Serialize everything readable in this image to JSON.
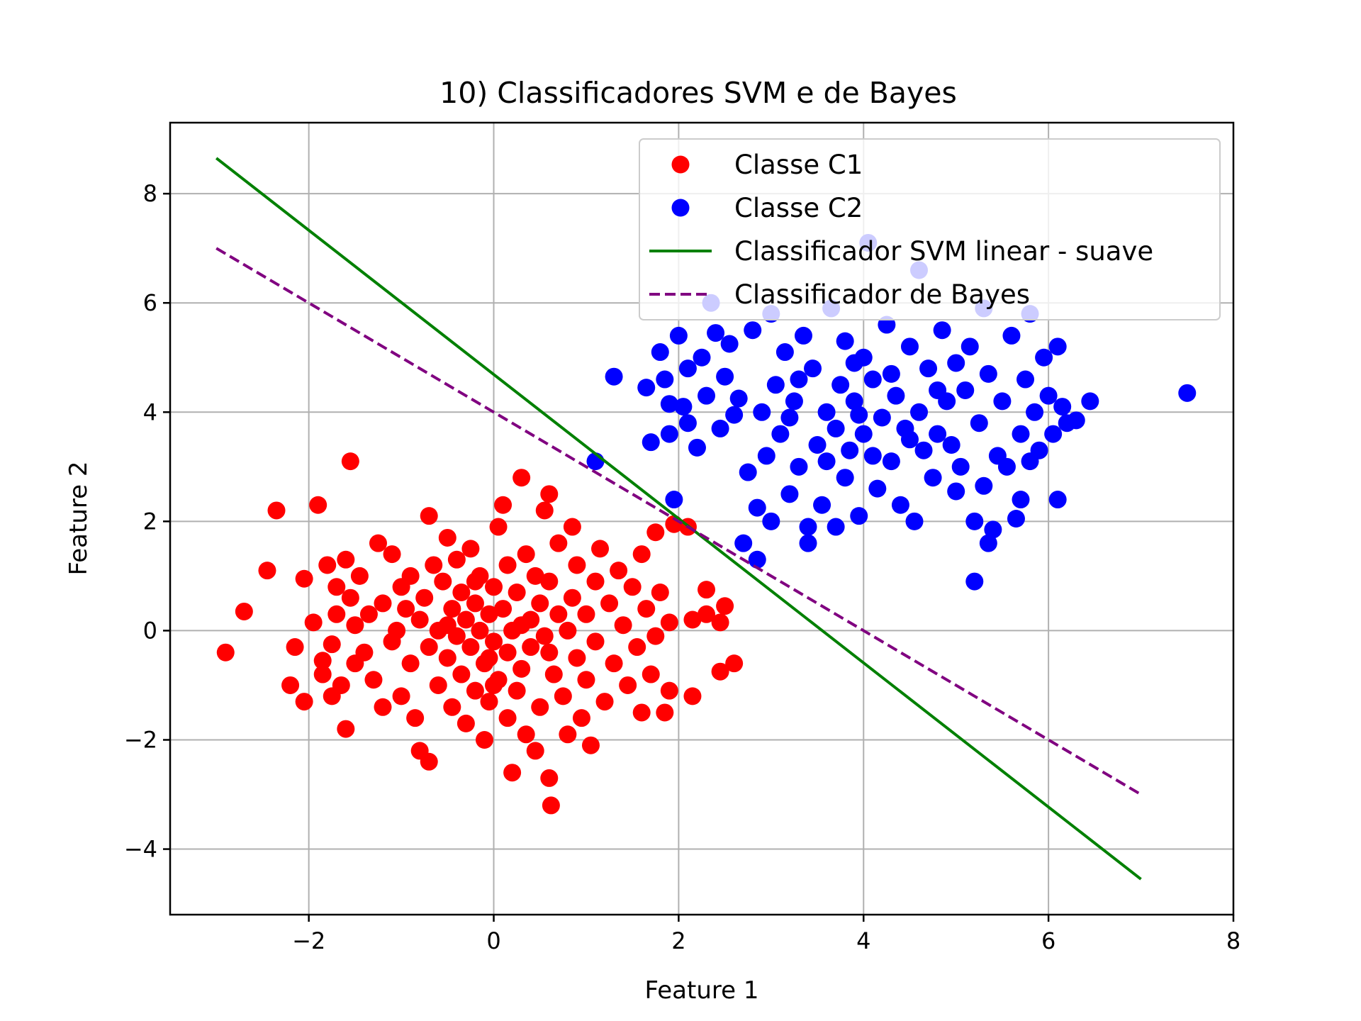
{
  "chart_data": {
    "type": "scatter",
    "title": "10) Classificadores SVM e de Bayes",
    "xlabel": "Feature 1",
    "ylabel": "Feature 2",
    "xlim": [
      -3.5,
      8
    ],
    "ylim": [
      -5.2,
      9.3
    ],
    "xticks": [
      -2,
      0,
      2,
      4,
      6,
      8
    ],
    "yticks": [
      -4,
      -2,
      0,
      2,
      4,
      6,
      8
    ],
    "xtick_labels": [
      "−2",
      "0",
      "2",
      "4",
      "6",
      "8"
    ],
    "ytick_labels": [
      "−4",
      "−2",
      "0",
      "2",
      "4",
      "6",
      "8"
    ],
    "grid": true,
    "legend_position": "top-right",
    "series": [
      {
        "name": "Classe C1",
        "kind": "scatter",
        "color": "#ff0000",
        "points": [
          [
            -2.9,
            -0.4
          ],
          [
            -2.7,
            0.35
          ],
          [
            -2.45,
            1.1
          ],
          [
            -2.35,
            2.2
          ],
          [
            -2.2,
            -1.0
          ],
          [
            -2.15,
            -0.3
          ],
          [
            -2.05,
            0.95
          ],
          [
            -2.05,
            -1.3
          ],
          [
            -1.95,
            0.15
          ],
          [
            -1.9,
            2.3
          ],
          [
            -1.85,
            -0.8
          ],
          [
            -1.85,
            -0.55
          ],
          [
            -1.8,
            1.2
          ],
          [
            -1.75,
            -0.25
          ],
          [
            -1.75,
            -1.2
          ],
          [
            -1.7,
            0.8
          ],
          [
            -1.7,
            0.3
          ],
          [
            -1.65,
            -1.0
          ],
          [
            -1.6,
            1.3
          ],
          [
            -1.6,
            -1.8
          ],
          [
            -1.55,
            3.1
          ],
          [
            -1.55,
            0.6
          ],
          [
            -1.5,
            0.1
          ],
          [
            -1.5,
            -0.6
          ],
          [
            -1.45,
            1.0
          ],
          [
            -1.4,
            -0.4
          ],
          [
            -1.35,
            0.3
          ],
          [
            -1.3,
            -0.9
          ],
          [
            -1.25,
            1.6
          ],
          [
            -1.2,
            0.5
          ],
          [
            -1.2,
            -1.4
          ],
          [
            -1.1,
            1.4
          ],
          [
            -1.1,
            -0.2
          ],
          [
            -1.05,
            0.0
          ],
          [
            -1.0,
            0.8
          ],
          [
            -1.0,
            -1.2
          ],
          [
            -0.95,
            0.4
          ],
          [
            -0.9,
            -0.6
          ],
          [
            -0.9,
            1.0
          ],
          [
            -0.85,
            -1.6
          ],
          [
            -0.8,
            0.2
          ],
          [
            -0.8,
            -2.2
          ],
          [
            -0.75,
            0.6
          ],
          [
            -0.7,
            2.1
          ],
          [
            -0.7,
            -0.3
          ],
          [
            -0.7,
            -2.4
          ],
          [
            -0.65,
            1.2
          ],
          [
            -0.6,
            -1.0
          ],
          [
            -0.6,
            0.0
          ],
          [
            -0.55,
            0.9
          ],
          [
            -0.5,
            -0.5
          ],
          [
            -0.5,
            1.7
          ],
          [
            -0.45,
            0.4
          ],
          [
            -0.45,
            -1.4
          ],
          [
            -0.4,
            1.3
          ],
          [
            -0.4,
            -0.1
          ],
          [
            -0.35,
            0.7
          ],
          [
            -0.35,
            -0.8
          ],
          [
            -0.3,
            -1.7
          ],
          [
            -0.3,
            0.2
          ],
          [
            -0.25,
            1.5
          ],
          [
            -0.25,
            -0.3
          ],
          [
            -0.2,
            0.5
          ],
          [
            -0.2,
            -1.1
          ],
          [
            -0.15,
            0.0
          ],
          [
            -0.15,
            1.0
          ],
          [
            -0.1,
            -0.6
          ],
          [
            -0.1,
            -2.0
          ],
          [
            -0.05,
            0.3
          ],
          [
            -0.05,
            -1.3
          ],
          [
            0.0,
            0.8
          ],
          [
            0.0,
            -0.2
          ],
          [
            0.05,
            1.9
          ],
          [
            0.05,
            -0.9
          ],
          [
            0.1,
            0.4
          ],
          [
            0.1,
            2.3
          ],
          [
            0.15,
            -0.4
          ],
          [
            0.15,
            1.2
          ],
          [
            0.2,
            -2.6
          ],
          [
            0.2,
            0.0
          ],
          [
            0.25,
            -1.1
          ],
          [
            0.25,
            0.7
          ],
          [
            0.3,
            2.8
          ],
          [
            0.3,
            -0.7
          ],
          [
            0.35,
            1.4
          ],
          [
            0.35,
            -1.9
          ],
          [
            0.4,
            0.2
          ],
          [
            0.4,
            -0.3
          ],
          [
            0.45,
            1.0
          ],
          [
            0.45,
            -2.2
          ],
          [
            0.5,
            0.5
          ],
          [
            0.5,
            -1.4
          ],
          [
            0.55,
            2.2
          ],
          [
            0.55,
            -0.1
          ],
          [
            0.6,
            2.5
          ],
          [
            0.6,
            -2.7
          ],
          [
            0.6,
            0.9
          ],
          [
            0.62,
            -3.2
          ],
          [
            0.65,
            -0.8
          ],
          [
            0.7,
            0.3
          ],
          [
            0.7,
            1.6
          ],
          [
            0.75,
            -1.2
          ],
          [
            0.8,
            0.0
          ],
          [
            0.8,
            -1.9
          ],
          [
            0.85,
            1.9
          ],
          [
            0.85,
            0.6
          ],
          [
            0.9,
            -0.5
          ],
          [
            0.9,
            1.2
          ],
          [
            0.95,
            -1.6
          ],
          [
            1.0,
            0.3
          ],
          [
            1.0,
            -0.9
          ],
          [
            1.05,
            -2.1
          ],
          [
            1.1,
            0.9
          ],
          [
            1.1,
            -0.2
          ],
          [
            1.15,
            1.5
          ],
          [
            1.2,
            -1.3
          ],
          [
            1.25,
            0.5
          ],
          [
            1.3,
            -0.6
          ],
          [
            1.35,
            1.1
          ],
          [
            1.4,
            0.1
          ],
          [
            1.45,
            -1.0
          ],
          [
            1.5,
            0.8
          ],
          [
            1.55,
            -0.3
          ],
          [
            1.6,
            1.4
          ],
          [
            1.6,
            -1.5
          ],
          [
            1.65,
            0.4
          ],
          [
            1.7,
            -0.8
          ],
          [
            1.75,
            1.8
          ],
          [
            1.75,
            -0.1
          ],
          [
            1.8,
            0.7
          ],
          [
            1.85,
            -1.5
          ],
          [
            1.9,
            0.15
          ],
          [
            1.95,
            1.95
          ],
          [
            1.9,
            -1.1
          ],
          [
            2.1,
            1.9
          ],
          [
            2.15,
            0.2
          ],
          [
            2.15,
            -1.2
          ],
          [
            2.3,
            0.3
          ],
          [
            2.3,
            0.75
          ],
          [
            2.45,
            0.15
          ],
          [
            2.45,
            -0.75
          ],
          [
            2.5,
            0.45
          ],
          [
            2.6,
            -0.6
          ],
          [
            -0.05,
            -0.5
          ],
          [
            0.0,
            -1.0
          ],
          [
            -0.2,
            0.9
          ],
          [
            0.3,
            0.1
          ],
          [
            0.6,
            -0.4
          ],
          [
            -0.5,
            0.1
          ],
          [
            0.15,
            -1.6
          ]
        ]
      },
      {
        "name": "Classe C2",
        "kind": "scatter",
        "color": "#0000ff",
        "points": [
          [
            1.1,
            3.1
          ],
          [
            1.3,
            4.65
          ],
          [
            1.65,
            4.45
          ],
          [
            1.7,
            3.45
          ],
          [
            1.8,
            5.1
          ],
          [
            1.85,
            4.6
          ],
          [
            1.9,
            3.6
          ],
          [
            1.9,
            4.15
          ],
          [
            1.95,
            2.4
          ],
          [
            2.0,
            5.4
          ],
          [
            2.05,
            4.1
          ],
          [
            2.1,
            4.8
          ],
          [
            2.1,
            3.8
          ],
          [
            2.2,
            3.35
          ],
          [
            2.25,
            5.0
          ],
          [
            2.3,
            4.3
          ],
          [
            2.35,
            6.0
          ],
          [
            2.4,
            5.45
          ],
          [
            2.45,
            3.7
          ],
          [
            2.5,
            4.65
          ],
          [
            2.55,
            5.25
          ],
          [
            2.6,
            3.95
          ],
          [
            2.65,
            4.25
          ],
          [
            2.7,
            1.6
          ],
          [
            2.75,
            2.9
          ],
          [
            2.8,
            5.5
          ],
          [
            2.85,
            2.25
          ],
          [
            2.85,
            1.3
          ],
          [
            2.9,
            4.0
          ],
          [
            2.95,
            3.2
          ],
          [
            3.0,
            5.8
          ],
          [
            3.0,
            2.0
          ],
          [
            3.05,
            4.5
          ],
          [
            3.1,
            3.6
          ],
          [
            3.15,
            5.1
          ],
          [
            3.2,
            2.5
          ],
          [
            3.25,
            4.2
          ],
          [
            3.3,
            3.0
          ],
          [
            3.35,
            5.4
          ],
          [
            3.4,
            1.6
          ],
          [
            3.4,
            1.9
          ],
          [
            3.45,
            4.8
          ],
          [
            3.5,
            3.4
          ],
          [
            3.55,
            2.3
          ],
          [
            3.6,
            4.0
          ],
          [
            3.65,
            5.9
          ],
          [
            3.7,
            1.9
          ],
          [
            3.7,
            3.7
          ],
          [
            3.75,
            4.5
          ],
          [
            3.8,
            5.3
          ],
          [
            3.8,
            2.8
          ],
          [
            3.85,
            3.3
          ],
          [
            3.9,
            4.2
          ],
          [
            3.95,
            2.1
          ],
          [
            4.0,
            5.0
          ],
          [
            4.0,
            3.6
          ],
          [
            4.05,
            7.1
          ],
          [
            4.1,
            4.6
          ],
          [
            4.15,
            2.6
          ],
          [
            4.2,
            3.9
          ],
          [
            4.25,
            5.6
          ],
          [
            4.3,
            3.1
          ],
          [
            4.35,
            4.3
          ],
          [
            4.4,
            2.3
          ],
          [
            4.45,
            3.7
          ],
          [
            4.5,
            5.2
          ],
          [
            4.55,
            2.0
          ],
          [
            4.6,
            6.6
          ],
          [
            4.6,
            4.0
          ],
          [
            4.65,
            3.3
          ],
          [
            4.7,
            4.8
          ],
          [
            4.75,
            2.8
          ],
          [
            4.8,
            3.6
          ],
          [
            4.85,
            5.5
          ],
          [
            4.9,
            4.2
          ],
          [
            4.95,
            3.4
          ],
          [
            5.0,
            2.55
          ],
          [
            5.0,
            4.9
          ],
          [
            5.05,
            3.0
          ],
          [
            5.1,
            4.4
          ],
          [
            5.15,
            5.2
          ],
          [
            5.2,
            0.9
          ],
          [
            5.2,
            2.0
          ],
          [
            5.25,
            3.8
          ],
          [
            5.3,
            2.65
          ],
          [
            5.3,
            5.9
          ],
          [
            5.35,
            1.6
          ],
          [
            5.35,
            4.7
          ],
          [
            5.4,
            1.85
          ],
          [
            5.45,
            3.2
          ],
          [
            5.5,
            4.2
          ],
          [
            5.55,
            3.0
          ],
          [
            5.6,
            5.4
          ],
          [
            5.65,
            2.05
          ],
          [
            5.7,
            2.4
          ],
          [
            5.7,
            3.6
          ],
          [
            5.75,
            4.6
          ],
          [
            5.8,
            5.8
          ],
          [
            5.8,
            3.1
          ],
          [
            5.85,
            4.0
          ],
          [
            5.9,
            3.3
          ],
          [
            5.95,
            5.0
          ],
          [
            6.0,
            4.3
          ],
          [
            6.05,
            3.6
          ],
          [
            6.1,
            2.4
          ],
          [
            6.1,
            5.2
          ],
          [
            6.15,
            4.1
          ],
          [
            6.2,
            3.8
          ],
          [
            6.3,
            3.85
          ],
          [
            6.45,
            4.2
          ],
          [
            7.5,
            4.35
          ],
          [
            3.95,
            3.95
          ],
          [
            4.3,
            4.7
          ],
          [
            3.6,
            3.1
          ],
          [
            4.8,
            4.4
          ],
          [
            3.3,
            4.6
          ],
          [
            4.1,
            3.2
          ],
          [
            3.9,
            4.9
          ],
          [
            4.5,
            3.5
          ],
          [
            3.2,
            3.9
          ]
        ]
      },
      {
        "name": "Classificador SVM linear - suave",
        "kind": "line",
        "color": "#008000",
        "dash": "solid",
        "x": [
          -3.0,
          7.0
        ],
        "y": [
          8.65,
          -4.55
        ]
      },
      {
        "name": "Classificador de Bayes",
        "kind": "line",
        "color": "#800080",
        "dash": "dashed",
        "x": [
          -3.0,
          7.0
        ],
        "y": [
          7.0,
          -3.0
        ]
      }
    ]
  }
}
